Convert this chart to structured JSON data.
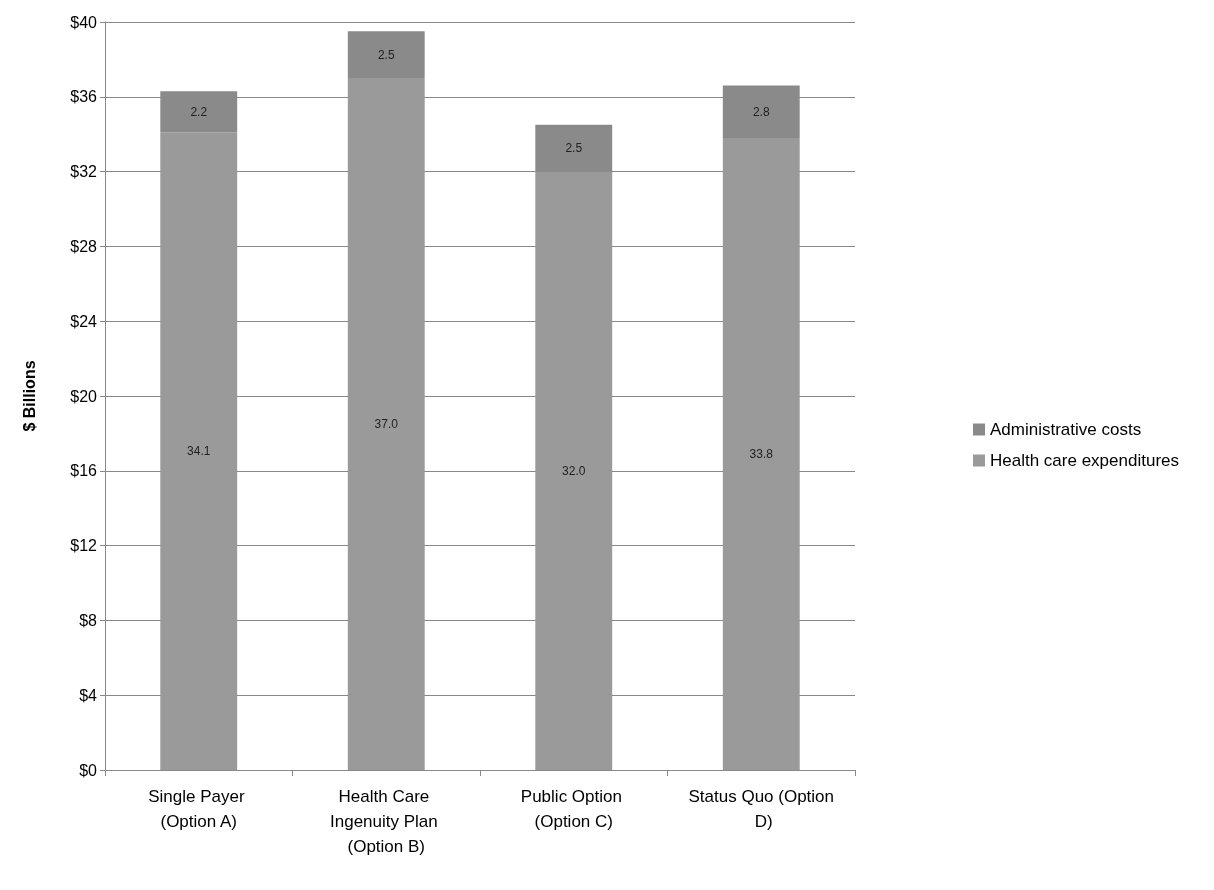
{
  "chart_data": {
    "type": "bar",
    "stacked": true,
    "ylabel": "$ Billions",
    "categories": [
      "Single Payer (Option A)",
      "Health Care Ingenuity Plan (Option B)",
      "Public Option (Option C)",
      "Status Quo (Option D)"
    ],
    "series": [
      {
        "name": "Health care expenditures",
        "color": "#9a9a9a",
        "values": [
          34.1,
          37.0,
          32.0,
          33.8
        ],
        "value_labels": [
          "34.1",
          "37.0",
          "32.0",
          "33.8"
        ]
      },
      {
        "name": "Administrative costs",
        "color": "#8a8a8a",
        "values": [
          2.2,
          2.5,
          2.5,
          2.8
        ],
        "value_labels": [
          "2.2",
          "2.5",
          "2.5",
          "2.8"
        ]
      }
    ],
    "ylim": [
      0,
      40
    ],
    "yticks": [
      {
        "value": 0,
        "label": "$0"
      },
      {
        "value": 4,
        "label": "$4"
      },
      {
        "value": 8,
        "label": "$8"
      },
      {
        "value": 12,
        "label": "$12"
      },
      {
        "value": 16,
        "label": "$16"
      },
      {
        "value": 20,
        "label": "$20"
      },
      {
        "value": 24,
        "label": "$24"
      },
      {
        "value": 28,
        "label": "$28"
      },
      {
        "value": 32,
        "label": "$32"
      },
      {
        "value": 36,
        "label": "$36"
      },
      {
        "value": 40,
        "label": "$40"
      }
    ],
    "grid": "y",
    "legend": "right"
  }
}
